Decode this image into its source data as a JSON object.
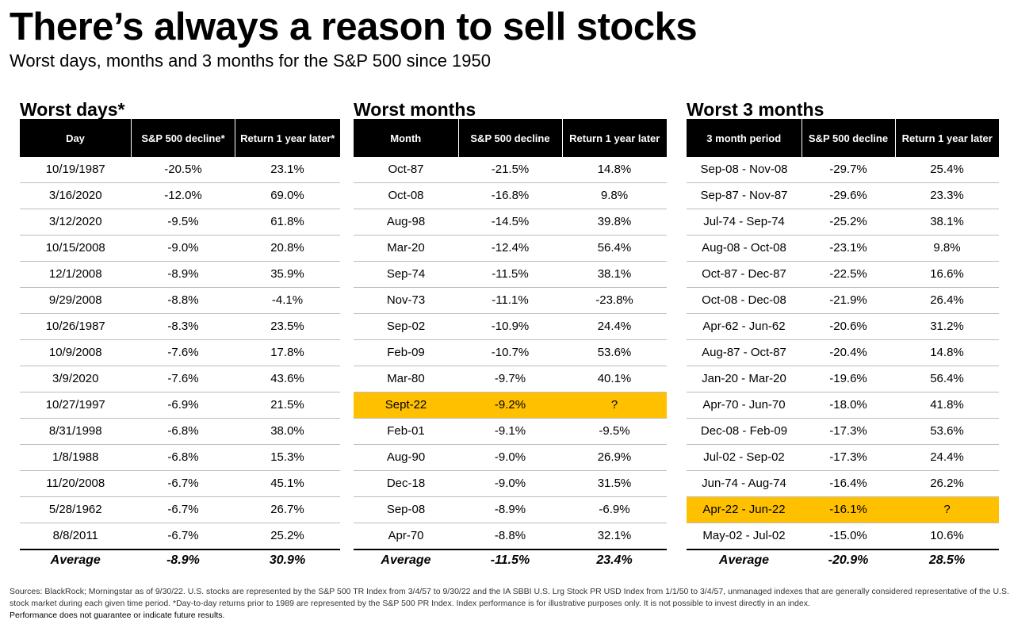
{
  "title": "There’s always a reason to sell stocks",
  "subtitle": "Worst days, months and 3 months for the S&P 500 since 1950",
  "colors": {
    "highlight": "#ffc000",
    "header_bg": "#000000"
  },
  "days": {
    "title": "Worst days*",
    "headers": [
      "Day",
      "S&P 500 decline*",
      "Return 1 year later*"
    ],
    "rows": [
      [
        "10/19/1987",
        "-20.5%",
        "23.1%"
      ],
      [
        "3/16/2020",
        "-12.0%",
        "69.0%"
      ],
      [
        "3/12/2020",
        "-9.5%",
        "61.8%"
      ],
      [
        "10/15/2008",
        "-9.0%",
        "20.8%"
      ],
      [
        "12/1/2008",
        "-8.9%",
        "35.9%"
      ],
      [
        "9/29/2008",
        "-8.8%",
        "-4.1%"
      ],
      [
        "10/26/1987",
        "-8.3%",
        "23.5%"
      ],
      [
        "10/9/2008",
        "-7.6%",
        "17.8%"
      ],
      [
        "3/9/2020",
        "-7.6%",
        "43.6%"
      ],
      [
        "10/27/1997",
        "-6.9%",
        "21.5%"
      ],
      [
        "8/31/1998",
        "-6.8%",
        "38.0%"
      ],
      [
        "1/8/1988",
        "-6.8%",
        "15.3%"
      ],
      [
        "11/20/2008",
        "-6.7%",
        "45.1%"
      ],
      [
        "5/28/1962",
        "-6.7%",
        "26.7%"
      ],
      [
        "8/8/2011",
        "-6.7%",
        "25.2%"
      ]
    ],
    "highlight_row": -1,
    "average": [
      "Average",
      "-8.9%",
      "30.9%"
    ]
  },
  "months": {
    "title": "Worst months",
    "headers": [
      "Month",
      "S&P 500 decline",
      "Return 1 year later"
    ],
    "rows": [
      [
        "Oct-87",
        "-21.5%",
        "14.8%"
      ],
      [
        "Oct-08",
        "-16.8%",
        "9.8%"
      ],
      [
        "Aug-98",
        "-14.5%",
        "39.8%"
      ],
      [
        "Mar-20",
        "-12.4%",
        "56.4%"
      ],
      [
        "Sep-74",
        "-11.5%",
        "38.1%"
      ],
      [
        "Nov-73",
        "-11.1%",
        "-23.8%"
      ],
      [
        "Sep-02",
        "-10.9%",
        "24.4%"
      ],
      [
        "Feb-09",
        "-10.7%",
        "53.6%"
      ],
      [
        "Mar-80",
        "-9.7%",
        "40.1%"
      ],
      [
        "Sept-22",
        "-9.2%",
        "?"
      ],
      [
        "Feb-01",
        "-9.1%",
        "-9.5%"
      ],
      [
        "Aug-90",
        "-9.0%",
        "26.9%"
      ],
      [
        "Dec-18",
        "-9.0%",
        "31.5%"
      ],
      [
        "Sep-08",
        "-8.9%",
        "-6.9%"
      ],
      [
        "Apr-70",
        "-8.8%",
        "32.1%"
      ]
    ],
    "highlight_row": 9,
    "average": [
      "Average",
      "-11.5%",
      "23.4%"
    ]
  },
  "three_months": {
    "title": "Worst 3 months",
    "headers": [
      "3 month period",
      "S&P 500 decline",
      "Return 1 year later"
    ],
    "rows": [
      [
        "Sep-08 - Nov-08",
        "-29.7%",
        "25.4%"
      ],
      [
        "Sep-87 - Nov-87",
        "-29.6%",
        "23.3%"
      ],
      [
        "Jul-74 - Sep-74",
        "-25.2%",
        "38.1%"
      ],
      [
        "Aug-08 - Oct-08",
        "-23.1%",
        "9.8%"
      ],
      [
        "Oct-87 - Dec-87",
        "-22.5%",
        "16.6%"
      ],
      [
        "Oct-08 - Dec-08",
        "-21.9%",
        "26.4%"
      ],
      [
        "Apr-62 - Jun-62",
        "-20.6%",
        "31.2%"
      ],
      [
        "Aug-87 - Oct-87",
        "-20.4%",
        "14.8%"
      ],
      [
        "Jan-20 - Mar-20",
        "-19.6%",
        "56.4%"
      ],
      [
        "Apr-70 - Jun-70",
        "-18.0%",
        "41.8%"
      ],
      [
        "Dec-08 - Feb-09",
        "-17.3%",
        "53.6%"
      ],
      [
        "Jul-02 - Sep-02",
        "-17.3%",
        "24.4%"
      ],
      [
        "Jun-74 - Aug-74",
        "-16.4%",
        "26.2%"
      ],
      [
        "Apr-22 - Jun-22",
        "-16.1%",
        "?"
      ],
      [
        "May-02 - Jul-02",
        "-15.0%",
        "10.6%"
      ]
    ],
    "highlight_row": 13,
    "average": [
      "Average",
      "-20.9%",
      "28.5%"
    ]
  },
  "footnote": {
    "sources": "Sources: BlackRock; Morningstar as of 9/30/22. U.S. stocks are represented by the S&P 500 TR Index from 3/4/57 to 9/30/22 and the IA SBBI U.S. Lrg Stock PR USD Index from 1/1/50 to 3/4/57, unmanaged indexes that are generally considered representative of the U.S. stock market during each given time period. *Day-to-day returns prior to 1989 are represented by the S&P 500 PR Index. Index performance is for illustrative purposes only. It is not possible to invest directly in an index.",
    "performance": "Performance does not guarantee or indicate future results."
  }
}
